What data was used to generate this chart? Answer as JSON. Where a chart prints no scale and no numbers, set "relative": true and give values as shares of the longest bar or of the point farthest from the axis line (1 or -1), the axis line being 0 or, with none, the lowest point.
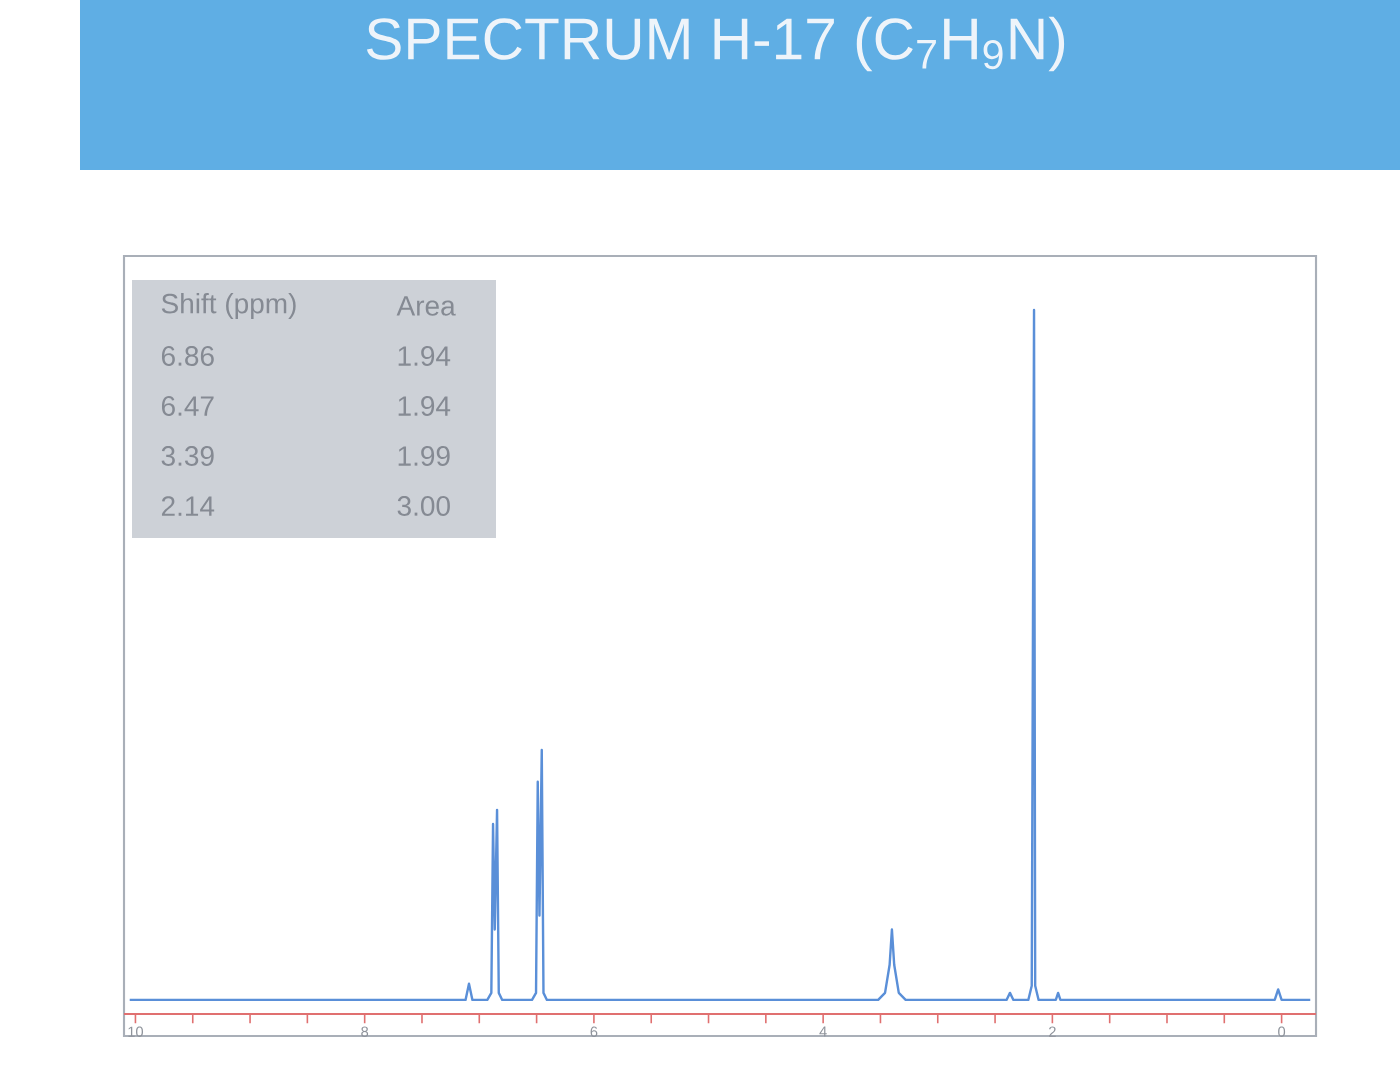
{
  "chart_data": {
    "type": "line",
    "title": "SPECTRUM H-17 (C$_{7}$H$_{9}$N)",
    "relative": true,
    "x": [
      10.05,
      7.12,
      7.09,
      7.06,
      6.93,
      6.895,
      6.88,
      6.865,
      6.845,
      6.83,
      6.8,
      6.54,
      6.505,
      6.49,
      6.475,
      6.455,
      6.44,
      6.41,
      3.52,
      3.46,
      3.42,
      3.4,
      3.38,
      3.34,
      3.28,
      2.4,
      2.37,
      2.34,
      2.21,
      2.18,
      2.16,
      2.15,
      2.12,
      1.97,
      1.95,
      1.93,
      0.06,
      0.03,
      0.0,
      -0.25
    ],
    "values": [
      0.02,
      0.02,
      0.043,
      0.02,
      0.02,
      0.03,
      0.27,
      0.12,
      0.29,
      0.03,
      0.02,
      0.02,
      0.03,
      0.33,
      0.14,
      0.375,
      0.03,
      0.02,
      0.02,
      0.03,
      0.07,
      0.12,
      0.07,
      0.03,
      0.02,
      0.02,
      0.03,
      0.02,
      0.02,
      0.04,
      1.0,
      0.04,
      0.02,
      0.02,
      0.03,
      0.02,
      0.02,
      0.035,
      0.02,
      0.02
    ],
    "color": "#5a8fd8",
    "xlim": [
      10.1,
      -0.3
    ],
    "xticks": [
      10,
      {
        "value": 9.5,
        "label": null
      },
      {
        "value": 9,
        "label": null
      },
      {
        "value": 8.5,
        "label": null
      },
      8,
      {
        "value": 7.5,
        "label": null
      },
      {
        "value": 7,
        "label": null
      },
      {
        "value": 6.5,
        "label": null
      },
      6,
      {
        "value": 5.5,
        "label": null
      },
      {
        "value": 5,
        "label": null
      },
      {
        "value": 4.5,
        "label": null
      },
      4,
      {
        "value": 3.5,
        "label": null
      },
      {
        "value": 3,
        "label": null
      },
      {
        "value": 2.5,
        "label": null
      },
      2,
      {
        "value": 1.5,
        "label": null
      },
      {
        "value": 1,
        "label": null
      },
      {
        "value": 0.5,
        "label": null
      },
      0
    ],
    "annotations": [
      "Shift (ppm)",
      "Area",
      "6.86",
      "1.94",
      "6.47",
      "1.94",
      "3.39",
      "1.99",
      "2.14",
      "3.00"
    ]
  }
}
